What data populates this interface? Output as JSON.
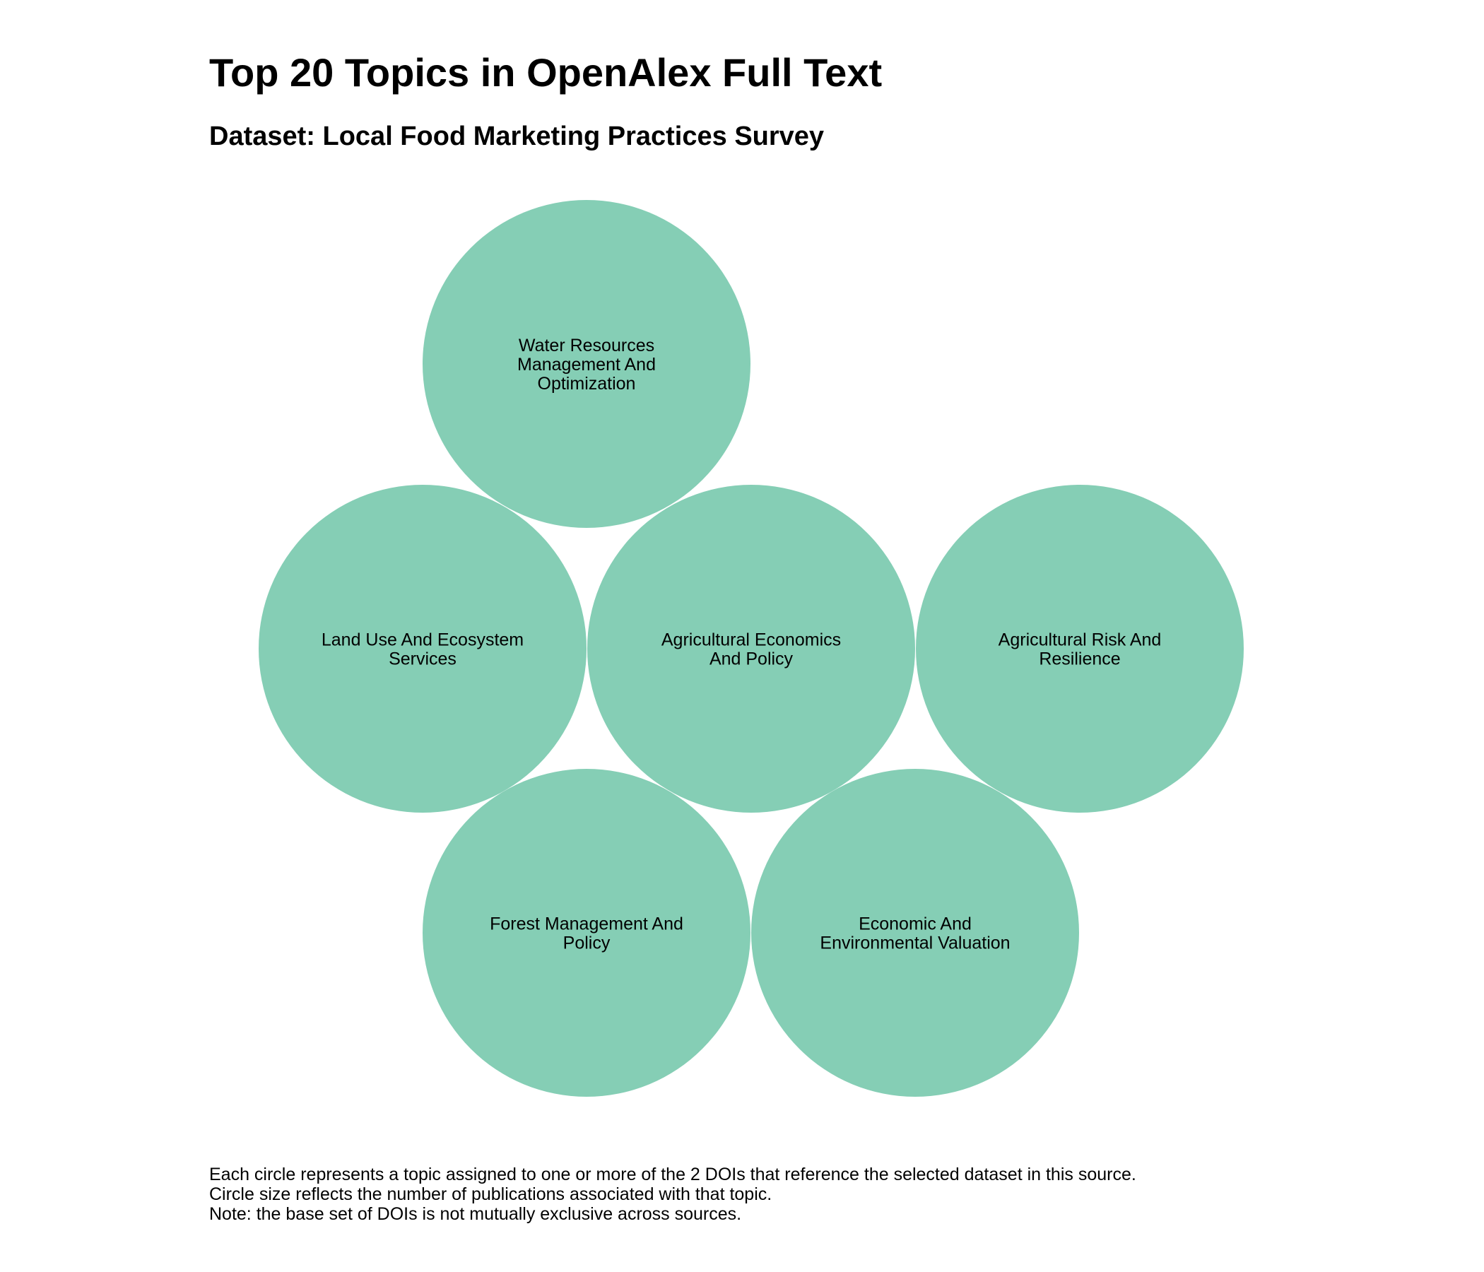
{
  "title": "Top 20 Topics in OpenAlex Full Text",
  "subtitle": "Dataset: Local Food Marketing Practices Survey",
  "caption": [
    "Each circle represents a topic assigned to one or more of the 2 DOIs that reference the selected dataset in this source.",
    "Circle size reflects the number of publications associated with that topic.",
    "Note: the base set of DOIs is not mutually exclusive across sources."
  ],
  "colors": {
    "bubble": "#85CEB5"
  },
  "chart_data": {
    "type": "bubble",
    "title": "Top 20 Topics in OpenAlex Full Text",
    "subtitle": "Dataset: Local Food Marketing Practices Survey",
    "series": [
      {
        "values": [
          {
            "label": "Water Resources Management And Optimization",
            "lines": [
              "Water Resources",
              "Management And",
              "Optimization"
            ],
            "value": 1
          },
          {
            "label": "Land Use And Ecosystem Services",
            "lines": [
              "Land Use And Ecosystem",
              "Services"
            ],
            "value": 1
          },
          {
            "label": "Agricultural Economics And Policy",
            "lines": [
              "Agricultural Economics",
              "And Policy"
            ],
            "value": 1
          },
          {
            "label": "Agricultural Risk And Resilience",
            "lines": [
              "Agricultural Risk And",
              "Resilience"
            ],
            "value": 1
          },
          {
            "label": "Forest Management And Policy",
            "lines": [
              "Forest Management And",
              "Policy"
            ],
            "value": 1
          },
          {
            "label": "Economic And Environmental Valuation",
            "lines": [
              "Economic And",
              "Environmental Valuation"
            ],
            "value": 1
          }
        ]
      }
    ],
    "legend": "none",
    "grid": false
  }
}
